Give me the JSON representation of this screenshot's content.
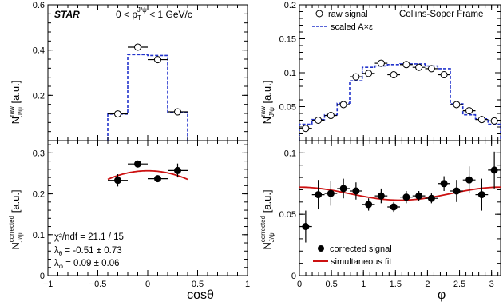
{
  "colors": {
    "dashed": "#2233cc",
    "fit": "#cc1111",
    "axis": "#000000"
  },
  "chart_data": [
    {
      "id": "top-left",
      "type": "scatter",
      "title": "",
      "experiment_label": "STAR",
      "kinematic_label": {
        "pre": "0 < p",
        "sub": "T",
        "sup": "J/ψ",
        "post": " <  1 GeV/c"
      },
      "ylabel": {
        "main": "N",
        "sup": "raw",
        "sub": "J/ψ",
        "unit": " [a.u.]"
      },
      "xlim": [
        -1,
        1
      ],
      "ylim": [
        0,
        0.6
      ],
      "yticks": [
        0,
        0.2,
        0.4,
        0.6
      ],
      "yticklabels": [
        "",
        "0.2",
        "0.4",
        "0.6"
      ],
      "raw_signal": [
        {
          "x": -0.3,
          "xerr": 0.1,
          "y": 0.118
        },
        {
          "x": -0.1,
          "xerr": 0.1,
          "y": 0.413
        },
        {
          "x": 0.1,
          "xerr": 0.1,
          "y": 0.358
        },
        {
          "x": 0.3,
          "xerr": 0.1,
          "y": 0.127
        }
      ],
      "scaled_acceptance_step": {
        "edges": [
          -0.4,
          -0.2,
          0.0,
          0.2,
          0.4
        ],
        "values": [
          0.117,
          0.38,
          0.376,
          0.125
        ]
      }
    },
    {
      "id": "bottom-left",
      "type": "scatter",
      "xlabel": "cosθ",
      "ylabel": {
        "main": "N",
        "sup": "corrected",
        "sub": "J/ψ",
        "unit": " [a.u.]"
      },
      "xlim": [
        -1,
        1
      ],
      "ylim": [
        0,
        0.33
      ],
      "xticks": [
        -1,
        -0.5,
        0,
        0.5,
        1
      ],
      "xticklabels": [
        "−1",
        "−0.5",
        "0",
        "0.5",
        "1"
      ],
      "yticks": [
        0,
        0.1,
        0.2,
        0.3
      ],
      "yticklabels": [
        "0",
        "0.1",
        "0.2",
        "0.3"
      ],
      "corrected_signal": [
        {
          "x": -0.3,
          "xerr": 0.1,
          "y": 0.233,
          "yerr": 0.015
        },
        {
          "x": -0.1,
          "xerr": 0.1,
          "y": 0.273,
          "yerr": 0.008
        },
        {
          "x": 0.1,
          "xerr": 0.1,
          "y": 0.237,
          "yerr": 0.006
        },
        {
          "x": 0.3,
          "xerr": 0.1,
          "y": 0.257,
          "yerr": 0.017
        }
      ],
      "fit_curve": {
        "x_range": [
          -0.4,
          0.4
        ],
        "A": 0.2563,
        "lambda_theta": -0.51
      },
      "annotations": {
        "chi2": "χ²/ndf = 21.1 / 15",
        "lambda_theta": "λ",
        "lambda_theta_sub": "θ",
        "lambda_theta_val": " = -0.51 ± 0.73",
        "lambda_phi": "λ",
        "lambda_phi_sub": "φ",
        "lambda_phi_val": " = 0.09 ± 0.06"
      }
    },
    {
      "id": "top-right",
      "type": "scatter",
      "frame_label": "Collins-Soper Frame",
      "ylabel": {
        "main": "N",
        "sup": "raw",
        "sub": "J/ψ",
        "unit": " [a.u.]"
      },
      "xlim": [
        0,
        3.14159
      ],
      "ylim": [
        0,
        0.2
      ],
      "yticks": [
        0,
        0.05,
        0.1,
        0.15,
        0.2
      ],
      "yticklabels": [
        "",
        "0.05",
        "0.1",
        "0.15",
        "0.2"
      ],
      "legend": {
        "raw": "raw signal",
        "scaled": "scaled A×ε"
      },
      "raw_signal": [
        {
          "x": 0.0982,
          "y": 0.018
        },
        {
          "x": 0.2945,
          "y": 0.03
        },
        {
          "x": 0.4909,
          "y": 0.037
        },
        {
          "x": 0.6872,
          "y": 0.053
        },
        {
          "x": 0.8836,
          "y": 0.094
        },
        {
          "x": 1.0799,
          "y": 0.099
        },
        {
          "x": 1.2763,
          "y": 0.114
        },
        {
          "x": 1.4726,
          "y": 0.097
        },
        {
          "x": 1.669,
          "y": 0.112
        },
        {
          "x": 1.8653,
          "y": 0.108
        },
        {
          "x": 2.0617,
          "y": 0.106
        },
        {
          "x": 2.258,
          "y": 0.097
        },
        {
          "x": 2.4544,
          "y": 0.053
        },
        {
          "x": 2.6507,
          "y": 0.044
        },
        {
          "x": 2.8471,
          "y": 0.031
        },
        {
          "x": 3.0434,
          "y": 0.029
        }
      ],
      "raw_xerr": 0.0982,
      "scaled_acceptance_step": {
        "edges": [
          0,
          0.1963,
          0.3927,
          0.589,
          0.7854,
          0.9817,
          1.1781,
          1.3744,
          1.5708,
          1.7671,
          1.9635,
          2.1598,
          2.3562,
          2.5525,
          2.7489,
          2.9452,
          3.1416
        ],
        "values": [
          0.024,
          0.031,
          0.038,
          0.055,
          0.088,
          0.108,
          0.11,
          0.112,
          0.113,
          0.113,
          0.11,
          0.106,
          0.054,
          0.038,
          0.032,
          0.024
        ]
      }
    },
    {
      "id": "bottom-right",
      "type": "scatter",
      "xlabel": "φ",
      "ylabel": {
        "main": "N",
        "sup": "corrected",
        "sub": "J/ψ",
        "unit": " [a.u.]"
      },
      "xlim": [
        0,
        3.14159
      ],
      "ylim": [
        0,
        0.11
      ],
      "xticks": [
        0,
        0.5,
        1,
        1.5,
        2,
        2.5,
        3
      ],
      "xticklabels": [
        "0",
        "0.5",
        "1",
        "1.5",
        "2",
        "2.5",
        "3"
      ],
      "yticks": [
        0,
        0.05,
        0.1
      ],
      "yticklabels": [
        "0",
        "0.05",
        "0.1"
      ],
      "legend": {
        "corrected": "corrected signal",
        "fit": "simultaneous fit"
      },
      "corrected_signal": [
        {
          "x": 0.0982,
          "y": 0.04,
          "yerr": 0.013
        },
        {
          "x": 0.2945,
          "y": 0.066,
          "yerr": 0.012
        },
        {
          "x": 0.4909,
          "y": 0.067,
          "yerr": 0.01
        },
        {
          "x": 0.6872,
          "y": 0.071,
          "yerr": 0.008
        },
        {
          "x": 0.8836,
          "y": 0.069,
          "yerr": 0.007
        },
        {
          "x": 1.0799,
          "y": 0.058,
          "yerr": 0.005
        },
        {
          "x": 1.2763,
          "y": 0.065,
          "yerr": 0.006
        },
        {
          "x": 1.4726,
          "y": 0.056,
          "yerr": 0.004
        },
        {
          "x": 1.669,
          "y": 0.064,
          "yerr": 0.005
        },
        {
          "x": 1.8653,
          "y": 0.065,
          "yerr": 0.004
        },
        {
          "x": 2.0617,
          "y": 0.063,
          "yerr": 0.004
        },
        {
          "x": 2.258,
          "y": 0.075,
          "yerr": 0.006
        },
        {
          "x": 2.4544,
          "y": 0.069,
          "yerr": 0.009
        },
        {
          "x": 2.6507,
          "y": 0.078,
          "yerr": 0.011
        },
        {
          "x": 2.8471,
          "y": 0.066,
          "yerr": 0.013
        },
        {
          "x": 3.0434,
          "y": 0.086,
          "yerr": 0.015
        }
      ],
      "corrected_xerr": 0.0982,
      "fit_curve": {
        "x_range": [
          0,
          3.14159
        ],
        "C": 0.0668,
        "B": 0.0053
      }
    }
  ]
}
